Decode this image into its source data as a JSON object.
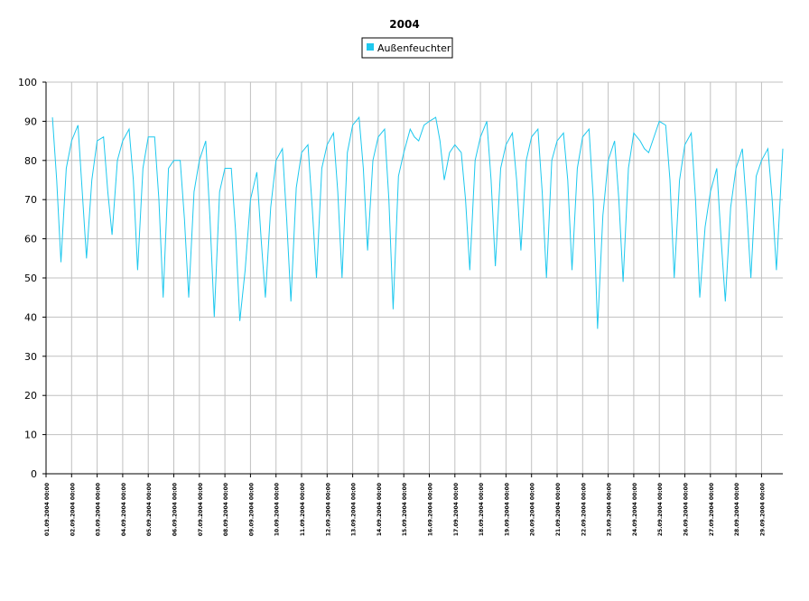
{
  "chart_data": {
    "type": "line",
    "title": "2004",
    "x": [
      "01.09.2004 06:00",
      "01.09.2004 10:00",
      "01.09.2004 14:00",
      "01.09.2004 19:00",
      "02.09.2004 00:00",
      "02.09.2004 06:00",
      "02.09.2004 10:00",
      "02.09.2004 14:00",
      "02.09.2004 19:00",
      "03.09.2004 00:00",
      "03.09.2004 06:00",
      "03.09.2004 10:00",
      "03.09.2004 14:00",
      "03.09.2004 19:00",
      "04.09.2004 00:00",
      "04.09.2004 06:00",
      "04.09.2004 10:00",
      "04.09.2004 14:00",
      "04.09.2004 19:00",
      "05.09.2004 00:00",
      "05.09.2004 06:00",
      "05.09.2004 10:00",
      "05.09.2004 14:00",
      "05.09.2004 19:00",
      "06.09.2004 00:00",
      "06.09.2004 06:00",
      "06.09.2004 10:00",
      "06.09.2004 14:00",
      "06.09.2004 19:00",
      "07.09.2004 00:00",
      "07.09.2004 06:00",
      "07.09.2004 10:00",
      "07.09.2004 14:00",
      "07.09.2004 19:00",
      "08.09.2004 00:00",
      "08.09.2004 06:00",
      "08.09.2004 10:00",
      "08.09.2004 14:00",
      "08.09.2004 19:00",
      "09.09.2004 00:00",
      "09.09.2004 06:00",
      "09.09.2004 10:00",
      "09.09.2004 14:00",
      "09.09.2004 19:00",
      "10.09.2004 00:00",
      "10.09.2004 06:00",
      "10.09.2004 10:00",
      "10.09.2004 14:00",
      "10.09.2004 19:00",
      "11.09.2004 00:00",
      "11.09.2004 06:00",
      "11.09.2004 10:00",
      "11.09.2004 14:00",
      "11.09.2004 19:00",
      "12.09.2004 00:00",
      "12.09.2004 06:00",
      "12.09.2004 10:00",
      "12.09.2004 14:00",
      "12.09.2004 19:00",
      "13.09.2004 00:00",
      "13.09.2004 06:00",
      "13.09.2004 10:00",
      "13.09.2004 14:00",
      "13.09.2004 19:00",
      "14.09.2004 00:00",
      "14.09.2004 06:00",
      "14.09.2004 10:00",
      "14.09.2004 14:00",
      "14.09.2004 19:00",
      "15.09.2004 00:00",
      "15.09.2004 06:00",
      "15.09.2004 10:00",
      "15.09.2004 14:00",
      "15.09.2004 19:00",
      "16.09.2004 00:00",
      "16.09.2004 06:00",
      "16.09.2004 10:00",
      "16.09.2004 14:00",
      "16.09.2004 19:00",
      "17.09.2004 00:00",
      "17.09.2004 06:00",
      "17.09.2004 10:00",
      "17.09.2004 14:00",
      "17.09.2004 19:00",
      "18.09.2004 00:00",
      "18.09.2004 06:00",
      "18.09.2004 10:00",
      "18.09.2004 14:00",
      "18.09.2004 19:00",
      "19.09.2004 00:00",
      "19.09.2004 06:00",
      "19.09.2004 10:00",
      "19.09.2004 14:00",
      "19.09.2004 19:00",
      "20.09.2004 00:00",
      "20.09.2004 06:00",
      "20.09.2004 10:00",
      "20.09.2004 14:00",
      "20.09.2004 19:00",
      "21.09.2004 00:00",
      "21.09.2004 06:00",
      "21.09.2004 10:00",
      "21.09.2004 14:00",
      "21.09.2004 19:00",
      "22.09.2004 00:00",
      "22.09.2004 06:00",
      "22.09.2004 10:00",
      "22.09.2004 14:00",
      "22.09.2004 19:00",
      "23.09.2004 00:00",
      "23.09.2004 06:00",
      "23.09.2004 10:00",
      "23.09.2004 14:00",
      "23.09.2004 19:00",
      "24.09.2004 00:00",
      "24.09.2004 06:00",
      "24.09.2004 10:00",
      "24.09.2004 14:00",
      "24.09.2004 19:00",
      "25.09.2004 00:00",
      "25.09.2004 06:00",
      "25.09.2004 10:00",
      "25.09.2004 14:00",
      "25.09.2004 19:00",
      "26.09.2004 00:00",
      "26.09.2004 06:00",
      "26.09.2004 10:00",
      "26.09.2004 14:00",
      "26.09.2004 19:00",
      "27.09.2004 00:00",
      "27.09.2004 06:00",
      "27.09.2004 10:00",
      "27.09.2004 14:00",
      "27.09.2004 19:00",
      "28.09.2004 00:00",
      "28.09.2004 06:00",
      "28.09.2004 10:00",
      "28.09.2004 14:00",
      "28.09.2004 19:00",
      "29.09.2004 00:00",
      "29.09.2004 06:00",
      "29.09.2004 10:00",
      "29.09.2004 14:00",
      "29.09.2004 20:00"
    ],
    "series": [
      {
        "name": "Außenfeuchter",
        "color": "#1ec8ee",
        "values": [
          91,
          75,
          54,
          78,
          85,
          89,
          72,
          55,
          75,
          85,
          86,
          72,
          61,
          80,
          85,
          88,
          75,
          52,
          78,
          86,
          86,
          70,
          45,
          78,
          80,
          80,
          65,
          45,
          72,
          80,
          85,
          65,
          40,
          72,
          78,
          78,
          62,
          39,
          52,
          70,
          77,
          60,
          45,
          68,
          80,
          83,
          65,
          44,
          73,
          82,
          84,
          68,
          50,
          78,
          84,
          87,
          72,
          50,
          82,
          89,
          91,
          78,
          57,
          80,
          86,
          88,
          70,
          42,
          76,
          82,
          88,
          86,
          85,
          89,
          90,
          91,
          85,
          75,
          82,
          84,
          82,
          70,
          52,
          80,
          86,
          90,
          75,
          53,
          78,
          84,
          87,
          75,
          57,
          80,
          86,
          88,
          72,
          50,
          80,
          85,
          87,
          75,
          52,
          78,
          86,
          88,
          70,
          37,
          66,
          80,
          85,
          70,
          49,
          78,
          87,
          85,
          83,
          82,
          86,
          90,
          89,
          75,
          50,
          75,
          84,
          87,
          70,
          45,
          63,
          72,
          78,
          60,
          44,
          68,
          78,
          83,
          68,
          50,
          76,
          80,
          83,
          70,
          52,
          83
        ]
      }
    ],
    "xlim": [
      "01.09.2004 00:00",
      "29.09.2004 20:00"
    ],
    "xticks": [
      "01.09.2004 00:00",
      "02.09.2004 00:00",
      "03.09.2004 00:00",
      "04.09.2004 00:00",
      "05.09.2004 00:00",
      "06.09.2004 00:00",
      "07.09.2004 00:00",
      "08.09.2004 00:00",
      "09.09.2004 00:00",
      "10.09.2004 00:00",
      "11.09.2004 00:00",
      "12.09.2004 00:00",
      "13.09.2004 00:00",
      "14.09.2004 00:00",
      "15.09.2004 00:00",
      "16.09.2004 00:00",
      "17.09.2004 00:00",
      "18.09.2004 00:00",
      "19.09.2004 00:00",
      "20.09.2004 00:00",
      "21.09.2004 00:00",
      "22.09.2004 00:00",
      "23.09.2004 00:00",
      "24.09.2004 00:00",
      "25.09.2004 00:00",
      "26.09.2004 00:00",
      "27.09.2004 00:00",
      "28.09.2004 00:00",
      "29.09.2004 00:00"
    ],
    "ylim": [
      0,
      100
    ],
    "yticks": [
      0,
      10,
      20,
      30,
      40,
      50,
      60,
      70,
      80,
      90,
      100
    ],
    "grid": true
  }
}
